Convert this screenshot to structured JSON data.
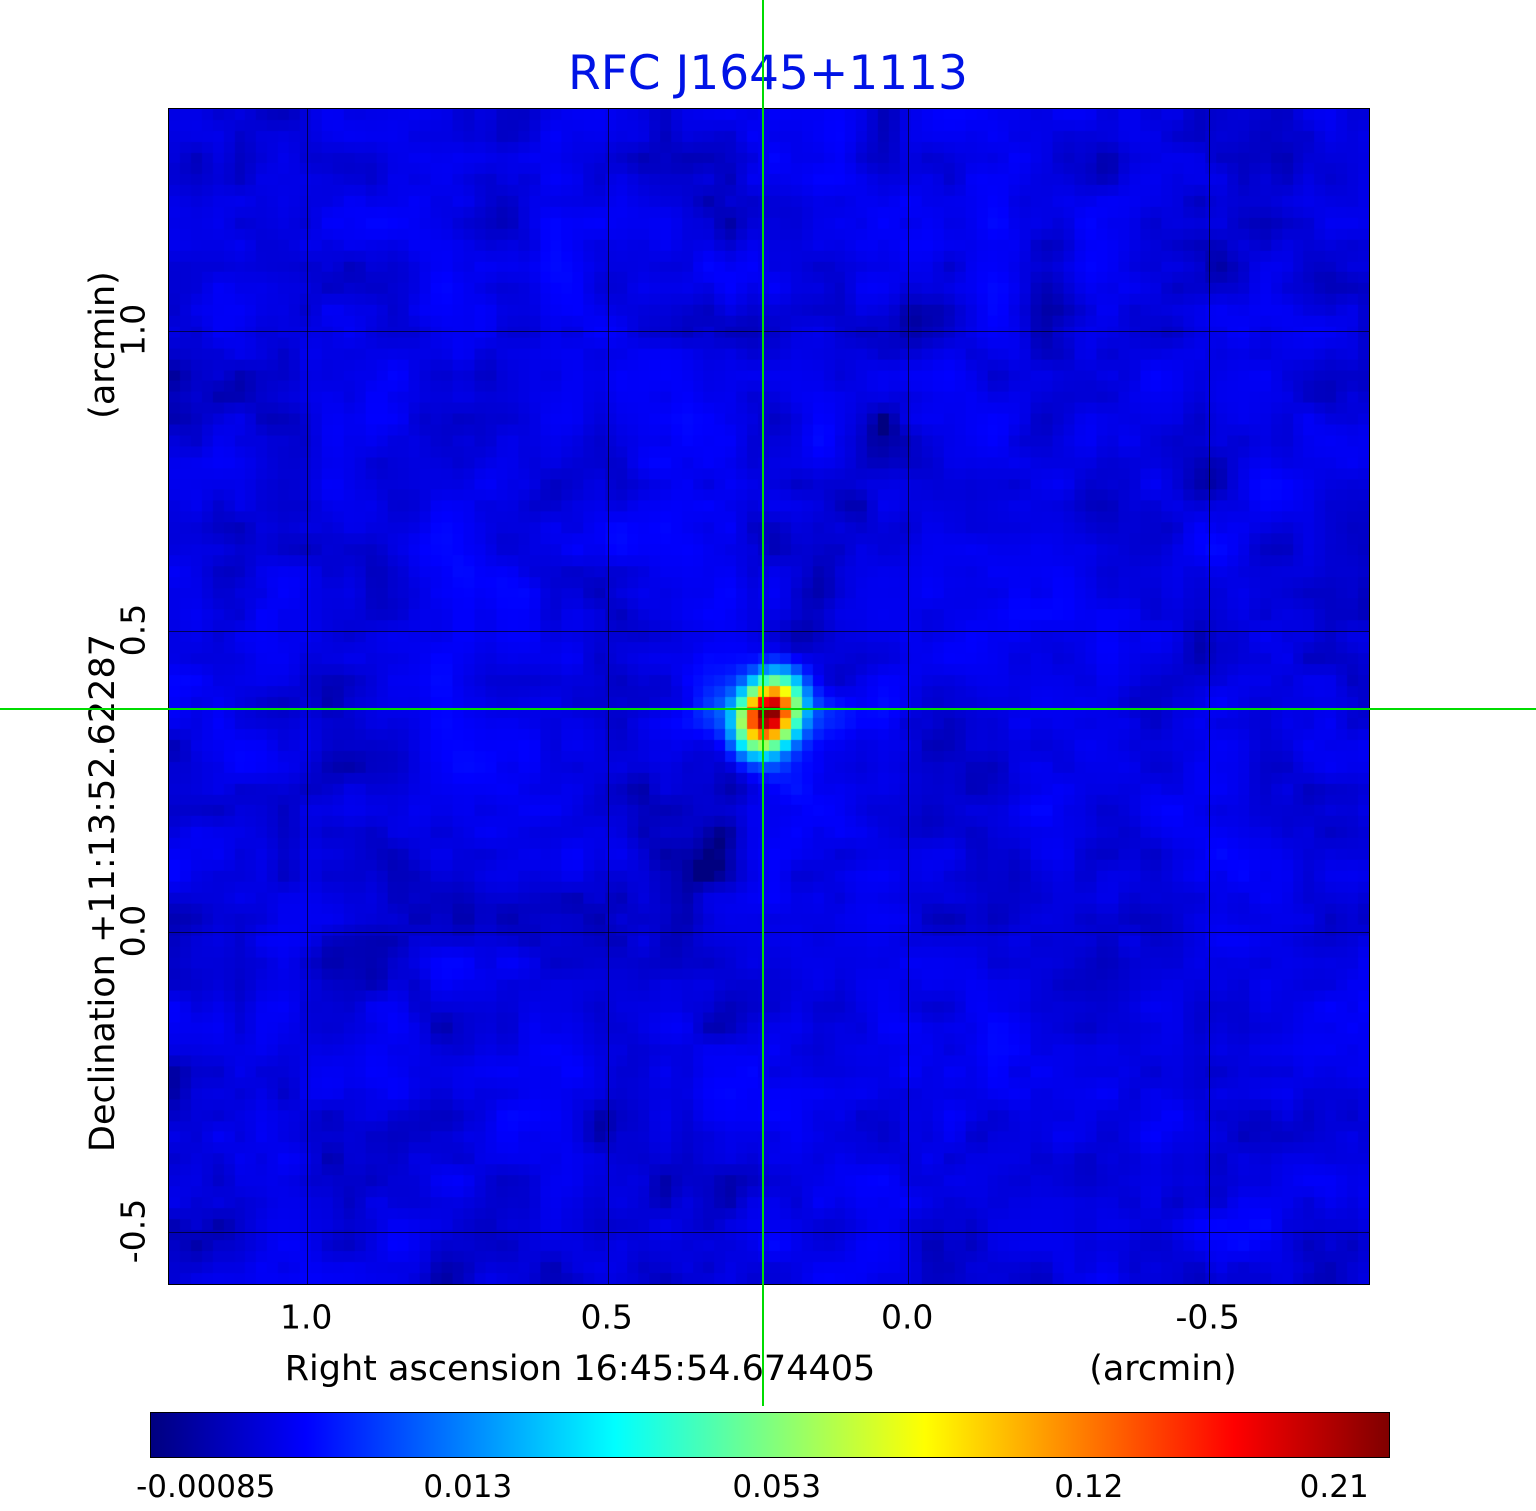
{
  "title": "RFC J1645+1113",
  "axes": {
    "x_label": "Right ascension  16:45:54.674405",
    "x_unit": "(arcmin)",
    "y_label": "Declination  +11:13:52.62287",
    "y_unit": "(arcmin)",
    "x_ticks": [
      "1.0",
      "0.5",
      "0.0",
      "-0.5"
    ],
    "y_ticks": [
      "1.0",
      "0.5",
      "0.0",
      "-0.5"
    ]
  },
  "colorbar": {
    "tick_labels": [
      "-0.00085",
      "0.013",
      "0.053",
      "0.12",
      "0.21"
    ],
    "colormap": "jet"
  },
  "colors": {
    "title_blue": "#0013e6",
    "crosshair_green": "#00dc00",
    "grid_black": "#000000"
  },
  "chart_data": {
    "type": "heatmap",
    "title": "RFC J1645+1113",
    "xlabel": "Right ascension 16:45:54.674405 (arcmin)",
    "ylabel": "Declination +11:13:52.62287 (arcmin)",
    "xlim": [
      1.23,
      -0.77
    ],
    "ylim": [
      -0.59,
      1.37
    ],
    "x_tick_values": [
      1.0,
      0.5,
      0.0,
      -0.5
    ],
    "y_tick_values": [
      1.0,
      0.5,
      0.0,
      -0.5
    ],
    "grid": true,
    "value_min": -0.00085,
    "value_max": 0.21,
    "scale": "sqrt",
    "colorbar_tick_values": [
      -0.00085,
      0.013,
      0.053,
      0.12,
      0.21
    ],
    "background_level": 0.0012,
    "source": {
      "ra_offset_arcmin": 0.24,
      "dec_offset_arcmin": 0.37,
      "peak": 0.21
    },
    "crosshair": {
      "x_arcmin": 0.24,
      "y_arcmin": 0.37
    }
  }
}
